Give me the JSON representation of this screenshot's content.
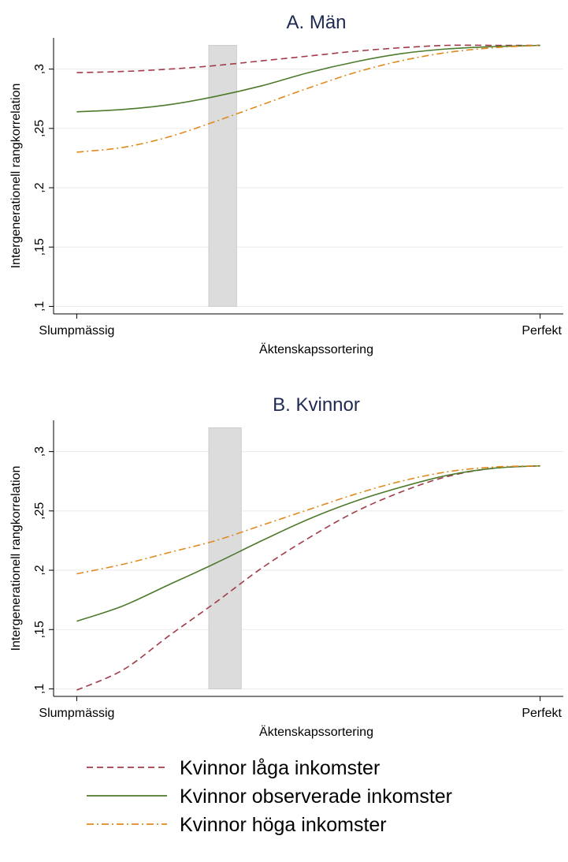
{
  "chart_data": [
    {
      "type": "line",
      "title": "A. Män",
      "xlabel": "Äktenskapssortering",
      "ylabel": "Intergenerationell rangkorrelation",
      "x_tick_labels": [
        "Slumpmässig",
        "Perfekt"
      ],
      "x": [
        0,
        0.1,
        0.2,
        0.3,
        0.4,
        0.5,
        0.6,
        0.7,
        0.8,
        0.9,
        1.0
      ],
      "xlim": [
        -0.05,
        1.05
      ],
      "ylim": [
        0.095,
        0.325
      ],
      "yticks": [
        0.1,
        0.15,
        0.2,
        0.25,
        0.3
      ],
      "ytick_labels": [
        ",1",
        ",15",
        ",2",
        ",25",
        ",3"
      ],
      "grid": true,
      "highlight_band": {
        "x": [
          0.285,
          0.345
        ],
        "y": [
          0.1,
          0.32
        ]
      },
      "series": [
        {
          "name": "Kvinnor låga inkomster",
          "style": "dashed",
          "color": "#a23b4a",
          "values": [
            0.297,
            0.298,
            0.3,
            0.303,
            0.307,
            0.311,
            0.315,
            0.318,
            0.32,
            0.32,
            0.32
          ]
        },
        {
          "name": "Kvinnor observerade inkomster",
          "style": "solid",
          "color": "#4e7a2c",
          "values": [
            0.264,
            0.266,
            0.27,
            0.277,
            0.286,
            0.297,
            0.306,
            0.313,
            0.317,
            0.319,
            0.32
          ]
        },
        {
          "name": "Kvinnor höga inkomster",
          "style": "dashdot",
          "color": "#e08a1e",
          "values": [
            0.23,
            0.234,
            0.243,
            0.256,
            0.27,
            0.284,
            0.297,
            0.307,
            0.314,
            0.318,
            0.32
          ]
        }
      ]
    },
    {
      "type": "line",
      "title": "B. Kvinnor",
      "xlabel": "Äktenskapssortering",
      "ylabel": "Intergenerationell rangkorrelation",
      "x_tick_labels": [
        "Slumpmässig",
        "Perfekt"
      ],
      "x": [
        0,
        0.1,
        0.2,
        0.3,
        0.4,
        0.5,
        0.6,
        0.7,
        0.8,
        0.9,
        1.0
      ],
      "xlim": [
        -0.05,
        1.05
      ],
      "ylim": [
        0.095,
        0.325
      ],
      "yticks": [
        0.1,
        0.15,
        0.2,
        0.25,
        0.3
      ],
      "ytick_labels": [
        ",1",
        ",15",
        ",2",
        ",25",
        ",3"
      ],
      "grid": true,
      "highlight_band": {
        "x": [
          0.285,
          0.355
        ],
        "y": [
          0.1,
          0.32
        ]
      },
      "series": [
        {
          "name": "Kvinnor låga inkomster",
          "style": "dashed",
          "color": "#a23b4a",
          "values": [
            0.099,
            0.116,
            0.145,
            0.173,
            0.202,
            0.227,
            0.249,
            0.266,
            0.279,
            0.286,
            0.288
          ]
        },
        {
          "name": "Kvinnor observerade inkomster",
          "style": "solid",
          "color": "#4e7a2c",
          "values": [
            0.157,
            0.17,
            0.188,
            0.206,
            0.225,
            0.243,
            0.258,
            0.27,
            0.28,
            0.286,
            0.288
          ]
        },
        {
          "name": "Kvinnor höga inkomster",
          "style": "dashdot",
          "color": "#e08a1e",
          "values": [
            0.197,
            0.205,
            0.215,
            0.225,
            0.238,
            0.251,
            0.264,
            0.275,
            0.283,
            0.287,
            0.288
          ]
        }
      ]
    }
  ],
  "legend": {
    "items": [
      {
        "label": "Kvinnor låga inkomster",
        "style": "dashed",
        "color": "#a23b4a"
      },
      {
        "label": "Kvinnor observerade inkomster",
        "style": "solid",
        "color": "#4e7a2c"
      },
      {
        "label": "Kvinnor höga inkomster",
        "style": "dashdot",
        "color": "#e08a1e"
      }
    ]
  },
  "colors": {
    "grid": "#eaeaea",
    "band": "#dcdcdc",
    "title": "#1e2a52"
  }
}
